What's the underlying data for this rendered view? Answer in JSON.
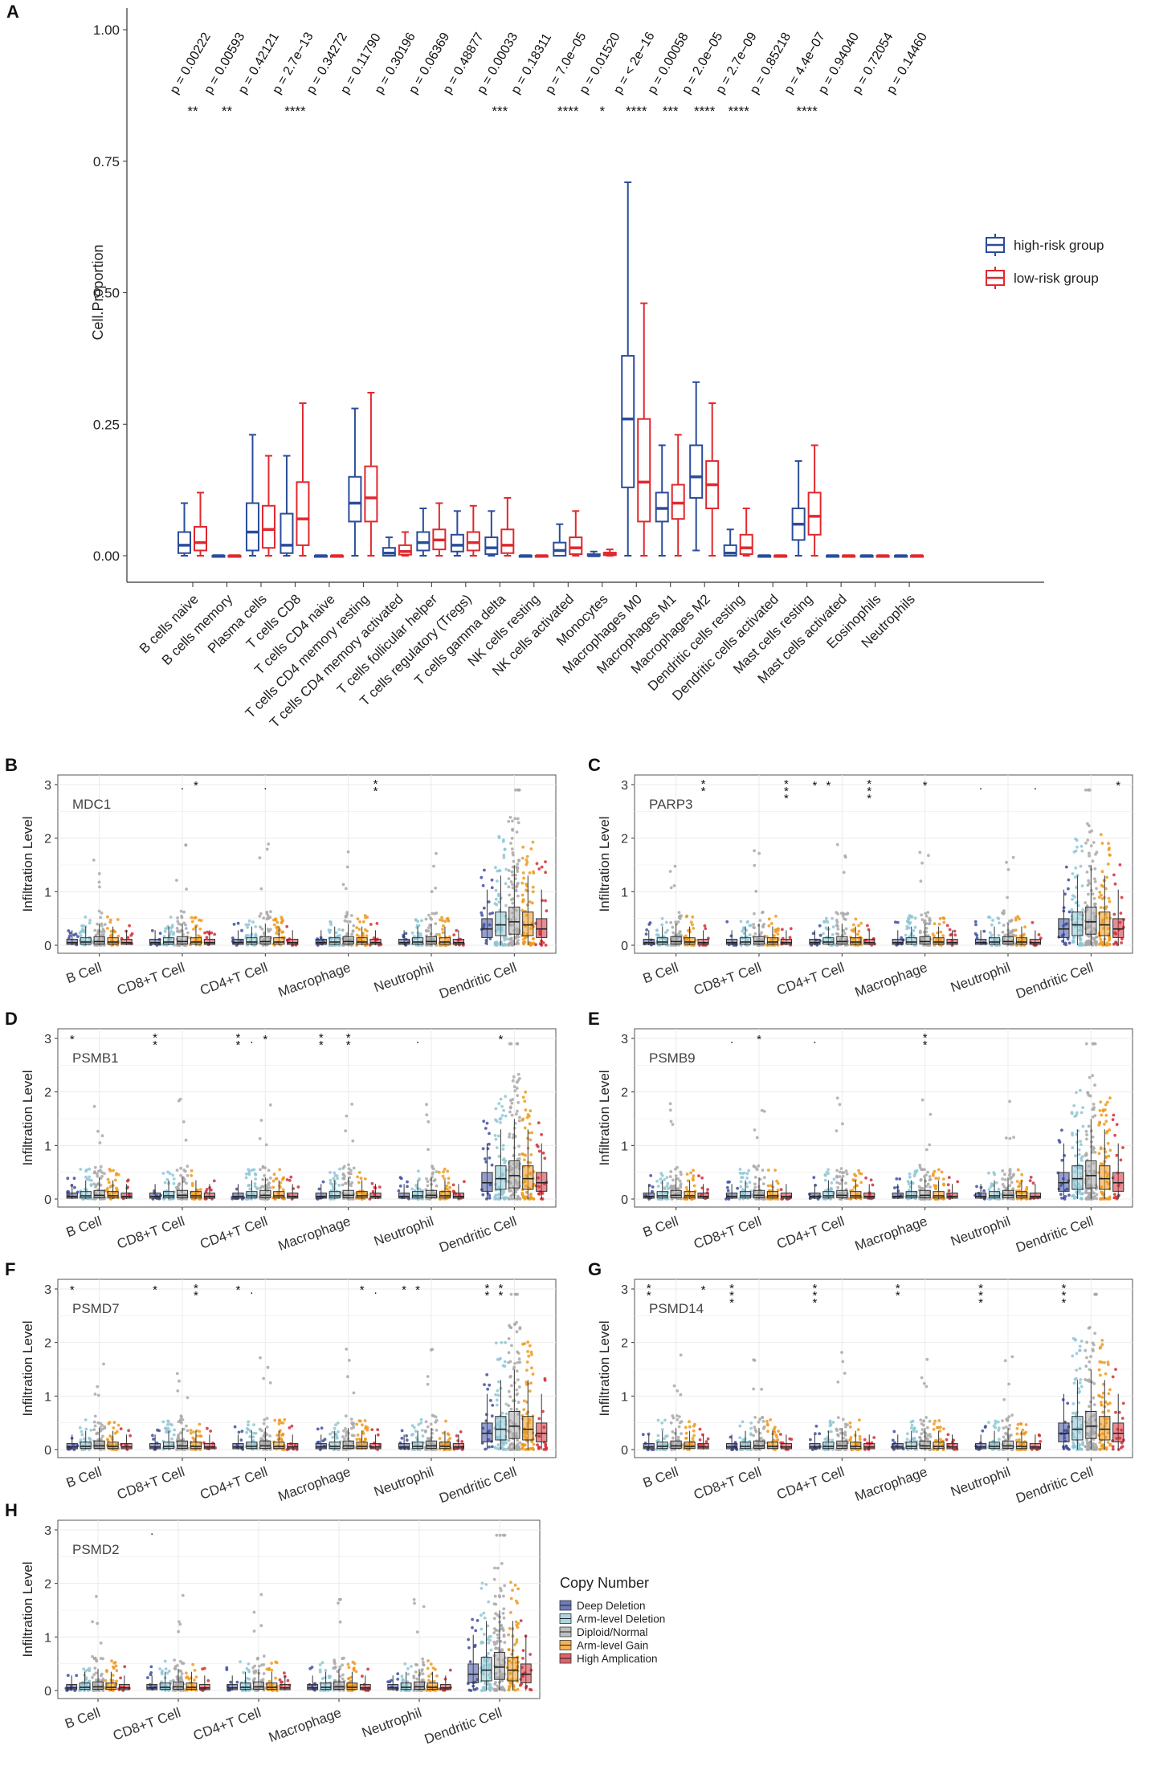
{
  "colors": {
    "high_risk": "#2A4D9B",
    "low_risk": "#E0282E",
    "deep_deletion": "#3F4FA1",
    "arm_level_deletion": "#8FC7D6",
    "diploid_normal": "#A9A9A9",
    "arm_level_gain": "#EE9A1F",
    "high_amplication": "#D22F3A"
  },
  "chart_data": [
    {
      "panel": "A",
      "type": "box",
      "ylabel": "Cell.Proportion",
      "ylim": [
        0,
        1.0
      ],
      "yticks": [
        "0.00",
        "0.25",
        "0.50",
        "0.75",
        "1.00"
      ],
      "legend": [
        "high-risk group",
        "low-risk group"
      ],
      "categories": [
        "B cells naive",
        "B cells memory",
        "Plasma cells",
        "T cells CD8",
        "T cells CD4 naive",
        "T cells CD4 memory resting",
        "T cells CD4 memory activated",
        "T cells follicular helper",
        "T cells regulatory (Tregs)",
        "T cells gamma delta",
        "NK cells resting",
        "NK cells activated",
        "Monocytes",
        "Macrophages M0",
        "Macrophages M1",
        "Macrophages M2",
        "Dendritic cells resting",
        "Dendritic cells activated",
        "Mast cells resting",
        "Mast cells activated",
        "Eosinophils",
        "Neutrophils"
      ],
      "pvalues": [
        "p = 0.00222",
        "p = 0.00593",
        "p = 0.42121",
        "p = 2.7e−13",
        "p = 0.34272",
        "p = 0.11790",
        "p = 0.30196",
        "p = 0.06369",
        "p = 0.48877",
        "p = 0.00033",
        "p = 0.18311",
        "p = 7.0e−05",
        "p = 0.01520",
        "p = < 2e−16",
        "p = 0.00058",
        "p = 2.0e−05",
        "p = 2.7e−09",
        "p = 0.85218",
        "p = 4.4e−07",
        "p = 0.94040",
        "p = 0.72054",
        "p = 0.14460"
      ],
      "stars": [
        "**",
        "**",
        "",
        "****",
        "",
        "",
        "",
        "",
        "",
        "***",
        "",
        "****",
        "*",
        "****",
        "***",
        "****",
        "****",
        "",
        "****",
        "",
        "",
        ""
      ],
      "series": [
        {
          "name": "high-risk group",
          "boxes": [
            [
              0,
              0.005,
              0.02,
              0.045,
              0.1
            ],
            [
              0,
              0,
              0,
              0,
              0
            ],
            [
              0,
              0.01,
              0.045,
              0.1,
              0.23
            ],
            [
              0,
              0.005,
              0.02,
              0.08,
              0.19
            ],
            [
              0,
              0,
              0,
              0,
              0
            ],
            [
              0,
              0.065,
              0.1,
              0.15,
              0.28
            ],
            [
              0,
              0,
              0.005,
              0.015,
              0.035
            ],
            [
              0,
              0.01,
              0.025,
              0.045,
              0.09
            ],
            [
              0,
              0.008,
              0.02,
              0.04,
              0.085
            ],
            [
              0,
              0.003,
              0.015,
              0.035,
              0.085
            ],
            [
              0,
              0,
              0,
              0,
              0
            ],
            [
              0,
              0,
              0.01,
              0.025,
              0.06
            ],
            [
              0,
              0,
              0,
              0.003,
              0.008
            ],
            [
              0,
              0.13,
              0.26,
              0.38,
              0.71
            ],
            [
              0,
              0.065,
              0.09,
              0.12,
              0.21
            ],
            [
              0.01,
              0.11,
              0.15,
              0.21,
              0.33
            ],
            [
              0,
              0,
              0.005,
              0.02,
              0.05
            ],
            [
              0,
              0,
              0,
              0,
              0
            ],
            [
              0,
              0.03,
              0.06,
              0.09,
              0.18
            ],
            [
              0,
              0,
              0,
              0,
              0
            ],
            [
              0,
              0,
              0,
              0,
              0
            ],
            [
              0,
              0,
              0,
              0,
              0
            ]
          ]
        },
        {
          "name": "low-risk group",
          "boxes": [
            [
              0,
              0.01,
              0.025,
              0.055,
              0.12
            ],
            [
              0,
              0,
              0,
              0,
              0
            ],
            [
              0,
              0.015,
              0.05,
              0.095,
              0.19
            ],
            [
              0,
              0.02,
              0.07,
              0.14,
              0.29
            ],
            [
              0,
              0,
              0,
              0,
              0
            ],
            [
              0,
              0.065,
              0.11,
              0.17,
              0.31
            ],
            [
              0,
              0.002,
              0.008,
              0.02,
              0.045
            ],
            [
              0,
              0.012,
              0.03,
              0.05,
              0.1
            ],
            [
              0,
              0.01,
              0.025,
              0.045,
              0.095
            ],
            [
              0,
              0.005,
              0.02,
              0.05,
              0.11
            ],
            [
              0,
              0,
              0,
              0,
              0
            ],
            [
              0,
              0.003,
              0.015,
              0.035,
              0.085
            ],
            [
              0,
              0.001,
              0.003,
              0.006,
              0.012
            ],
            [
              0,
              0.065,
              0.14,
              0.26,
              0.48
            ],
            [
              0,
              0.07,
              0.1,
              0.135,
              0.23
            ],
            [
              0,
              0.09,
              0.135,
              0.18,
              0.29
            ],
            [
              0,
              0.003,
              0.015,
              0.04,
              0.09
            ],
            [
              0,
              0,
              0,
              0,
              0
            ],
            [
              0,
              0.04,
              0.075,
              0.12,
              0.21
            ],
            [
              0,
              0,
              0,
              0,
              0
            ],
            [
              0,
              0,
              0,
              0,
              0
            ],
            [
              0,
              0,
              0,
              0,
              0
            ]
          ]
        }
      ]
    },
    {
      "panel": "B",
      "type": "box",
      "gene": "MDC1",
      "ylabel": "Infiltration Level",
      "categories": [
        "B Cell",
        "CD8+T Cell",
        "CD4+T Cell",
        "Macrophage",
        "Neutrophil",
        "Dendritic Cell"
      ],
      "yticks": [
        "0",
        "1",
        "2",
        "3"
      ],
      "annotations": [
        {
          "cat": 1,
          "pos": 0.5,
          "text": "."
        },
        {
          "cat": 1,
          "pos": 0.7,
          "text": "*"
        },
        {
          "cat": 2,
          "pos": 0.5,
          "text": "."
        },
        {
          "cat": 3,
          "pos": 0.9,
          "text": "**"
        }
      ]
    },
    {
      "panel": "C",
      "type": "box",
      "gene": "PARP3",
      "ylabel": "Infiltration Level",
      "categories": [
        "B Cell",
        "CD8+T Cell",
        "CD4+T Cell",
        "Macrophage",
        "Neutrophil",
        "Dendritic Cell"
      ],
      "yticks": [
        "0",
        "1",
        "2",
        "3"
      ],
      "annotations": [
        {
          "cat": 0,
          "pos": 0.9,
          "text": "**"
        },
        {
          "cat": 1,
          "pos": 0.9,
          "text": "***"
        },
        {
          "cat": 2,
          "pos": 0.1,
          "text": "*"
        },
        {
          "cat": 2,
          "pos": 0.3,
          "text": "*"
        },
        {
          "cat": 2,
          "pos": 0.9,
          "text": "***"
        },
        {
          "cat": 3,
          "pos": 0.5,
          "text": "*"
        },
        {
          "cat": 4,
          "pos": 0.1,
          "text": "."
        },
        {
          "cat": 4,
          "pos": 0.9,
          "text": "."
        },
        {
          "cat": 5,
          "pos": 0.9,
          "text": "*"
        }
      ]
    },
    {
      "panel": "D",
      "type": "box",
      "gene": "PSMB1",
      "ylabel": "Infiltration Level",
      "categories": [
        "B Cell",
        "CD8+T Cell",
        "CD4+T Cell",
        "Macrophage",
        "Neutrophil",
        "Dendritic Cell"
      ],
      "yticks": [
        "0",
        "1",
        "2",
        "3"
      ],
      "annotations": [
        {
          "cat": 0,
          "pos": 0.1,
          "text": "*"
        },
        {
          "cat": 1,
          "pos": 0.1,
          "text": "**"
        },
        {
          "cat": 2,
          "pos": 0.1,
          "text": "**"
        },
        {
          "cat": 2,
          "pos": 0.3,
          "text": "."
        },
        {
          "cat": 2,
          "pos": 0.5,
          "text": "*"
        },
        {
          "cat": 3,
          "pos": 0.1,
          "text": "**"
        },
        {
          "cat": 3,
          "pos": 0.5,
          "text": "**"
        },
        {
          "cat": 4,
          "pos": 0.3,
          "text": "."
        },
        {
          "cat": 5,
          "pos": 0.3,
          "text": "*"
        }
      ]
    },
    {
      "panel": "E",
      "type": "box",
      "gene": "PSMB9",
      "ylabel": "Infiltration Level",
      "categories": [
        "B Cell",
        "CD8+T Cell",
        "CD4+T Cell",
        "Macrophage",
        "Neutrophil",
        "Dendritic Cell"
      ],
      "yticks": [
        "0",
        "1",
        "2",
        "3"
      ],
      "annotations": [
        {
          "cat": 1,
          "pos": 0.1,
          "text": "."
        },
        {
          "cat": 1,
          "pos": 0.5,
          "text": "*"
        },
        {
          "cat": 2,
          "pos": 0.1,
          "text": "."
        },
        {
          "cat": 3,
          "pos": 0.5,
          "text": "**"
        }
      ]
    },
    {
      "panel": "F",
      "type": "box",
      "gene": "PSMD7",
      "ylabel": "Infiltration Level",
      "categories": [
        "B Cell",
        "CD8+T Cell",
        "CD4+T Cell",
        "Macrophage",
        "Neutrophil",
        "Dendritic Cell"
      ],
      "yticks": [
        "0",
        "1",
        "2",
        "3"
      ],
      "annotations": [
        {
          "cat": 0,
          "pos": 0.1,
          "text": "*"
        },
        {
          "cat": 1,
          "pos": 0.1,
          "text": "*"
        },
        {
          "cat": 1,
          "pos": 0.7,
          "text": "**"
        },
        {
          "cat": 2,
          "pos": 0.1,
          "text": "*"
        },
        {
          "cat": 2,
          "pos": 0.3,
          "text": "."
        },
        {
          "cat": 3,
          "pos": 0.7,
          "text": "*"
        },
        {
          "cat": 3,
          "pos": 0.9,
          "text": "."
        },
        {
          "cat": 4,
          "pos": 0.1,
          "text": "*"
        },
        {
          "cat": 4,
          "pos": 0.3,
          "text": "*"
        },
        {
          "cat": 5,
          "pos": 0.1,
          "text": "**"
        },
        {
          "cat": 5,
          "pos": 0.3,
          "text": "**"
        }
      ]
    },
    {
      "panel": "G",
      "type": "box",
      "gene": "PSMD14",
      "ylabel": "Infiltration Level",
      "categories": [
        "B Cell",
        "CD8+T Cell",
        "CD4+T Cell",
        "Macrophage",
        "Neutrophil",
        "Dendritic Cell"
      ],
      "yticks": [
        "0",
        "1",
        "2",
        "3"
      ],
      "annotations": [
        {
          "cat": 0,
          "pos": 0.1,
          "text": "**"
        },
        {
          "cat": 0,
          "pos": 0.9,
          "text": "*"
        },
        {
          "cat": 1,
          "pos": 0.1,
          "text": "***"
        },
        {
          "cat": 2,
          "pos": 0.1,
          "text": "***"
        },
        {
          "cat": 3,
          "pos": 0.1,
          "text": "**"
        },
        {
          "cat": 4,
          "pos": 0.1,
          "text": "***"
        },
        {
          "cat": 5,
          "pos": 0.1,
          "text": "***"
        }
      ]
    },
    {
      "panel": "H",
      "type": "box",
      "gene": "PSMD2",
      "ylabel": "Infiltration Level",
      "categories": [
        "B Cell",
        "CD8+T Cell",
        "CD4+T Cell",
        "Macrophage",
        "Neutrophil",
        "Dendritic Cell"
      ],
      "yticks": [
        "0",
        "1",
        "2",
        "3"
      ],
      "annotations": [
        {
          "cat": 1,
          "pos": 0.1,
          "text": "."
        }
      ],
      "legend_title": "Copy Number",
      "legend": [
        "Deep Deletion",
        "Arm-level Deletion",
        "Diploid/Normal",
        "Arm-level Gain",
        "High Amplication"
      ]
    }
  ]
}
